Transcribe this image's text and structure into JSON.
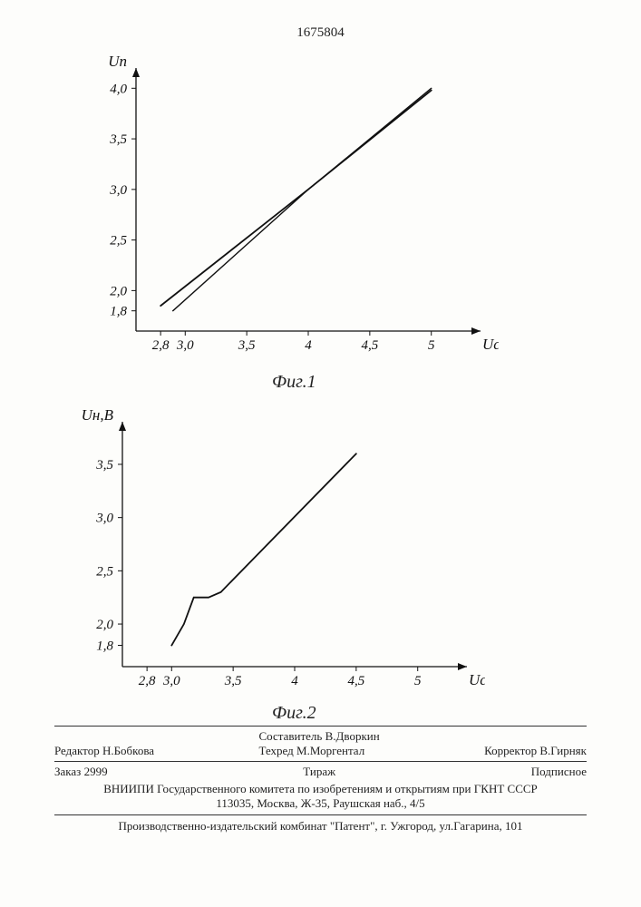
{
  "page_number": "1675804",
  "fig1": {
    "type": "line",
    "caption": "Фиг.1",
    "y_axis_label": "Uп",
    "x_axis_label": "Uсс",
    "x_ticks": [
      2.8,
      3.0,
      3.5,
      4.0,
      4.5,
      5.0
    ],
    "x_tick_labels": [
      "2,8",
      "3,0",
      "3,5",
      "4",
      "4,5",
      "5"
    ],
    "y_ticks": [
      1.8,
      2.0,
      2.5,
      3.0,
      3.5,
      4.0
    ],
    "y_tick_labels": [
      "1,8",
      "2,0",
      "2,5",
      "3,0",
      "3,5",
      "4,0"
    ],
    "xlim": [
      2.6,
      5.4
    ],
    "ylim": [
      1.6,
      4.2
    ],
    "series": [
      {
        "points": [
          [
            2.8,
            1.85
          ],
          [
            4.0,
            3.0
          ],
          [
            5.0,
            3.98
          ]
        ],
        "color": "#111",
        "width": 1.8
      },
      {
        "points": [
          [
            2.9,
            1.8
          ],
          [
            4.0,
            3.0
          ],
          [
            5.0,
            4.0
          ]
        ],
        "color": "#111",
        "width": 1.4
      }
    ],
    "axis_color": "#111",
    "tick_font_size": 15,
    "tick_font_style": "italic",
    "background": "#fdfdfb"
  },
  "fig2": {
    "type": "line",
    "caption": "Фиг.2",
    "y_axis_label": "Uн,В",
    "x_axis_label": "Uсс, В",
    "x_ticks": [
      2.8,
      3.0,
      3.5,
      4.0,
      4.5,
      5.0
    ],
    "x_tick_labels": [
      "2,8",
      "3,0",
      "3,5",
      "4",
      "4,5",
      "5"
    ],
    "y_ticks": [
      1.8,
      2.0,
      2.5,
      3.0,
      3.5
    ],
    "y_tick_labels": [
      "1,8",
      "2,0",
      "2,5",
      "3,0",
      "3,5"
    ],
    "xlim": [
      2.6,
      5.4
    ],
    "ylim": [
      1.6,
      3.9
    ],
    "series": [
      {
        "points": [
          [
            3.0,
            1.8
          ],
          [
            3.1,
            2.0
          ],
          [
            3.18,
            2.25
          ],
          [
            3.3,
            2.25
          ],
          [
            3.4,
            2.3
          ],
          [
            4.5,
            3.6
          ]
        ],
        "color": "#111",
        "width": 1.8
      }
    ],
    "axis_color": "#111",
    "tick_font_size": 15,
    "tick_font_style": "italic",
    "background": "#fdfdfb"
  },
  "footer": {
    "editor_label": "Редактор",
    "editor_name": "Н.Бобкова",
    "compiler_label": "Составитель",
    "compiler_name": "В.Дворкин",
    "techred_label": "Техред",
    "techred_name": "М.Моргентал",
    "corrector_label": "Корректор",
    "corrector_name": "В.Гирняк",
    "order_label": "Заказ",
    "order_no": "2999",
    "tirage_label": "Тираж",
    "subscription_label": "Подписное",
    "org_line": "ВНИИПИ Государственного комитета по изобретениям и открытиям при ГКНТ СССР",
    "address_line": "113035, Москва, Ж-35, Раушская наб., 4/5",
    "publisher_line": "Производственно-издательский комбинат \"Патент\", г. Ужгород, ул.Гагарина, 101"
  }
}
